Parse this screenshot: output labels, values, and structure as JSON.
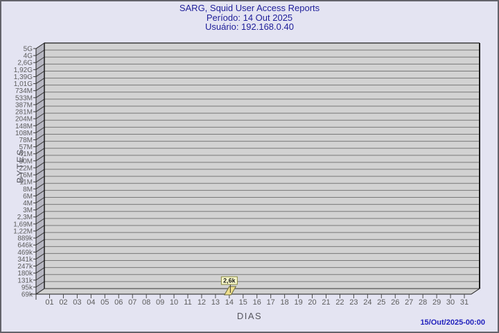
{
  "title": {
    "line1": "SARG, Squid User Access Reports",
    "line2": "Período: 14 Out 2025",
    "line3": "Usuário: 192.168.0.40"
  },
  "axes": {
    "y_title": "BYTES",
    "x_title": "DIAS"
  },
  "footer": {
    "timestamp": "15/Out/2025-00:00"
  },
  "colors": {
    "background": "#e4e4f2",
    "frame_border": "#63636b",
    "title_text": "#1e1e99",
    "timestamp_text": "#2121bd",
    "axis_title_text": "#56565e",
    "tick_text": "#5c5c5c",
    "plot_bg": "#d2d2d2",
    "wall": "#b7b7c2",
    "grid": "#787878",
    "dark_edge": "#1c1c1c",
    "bar_fill": "#efdf8d",
    "bar_edge": "#6b6b3a",
    "label_box_fill": "#ffffcf",
    "label_box_edge": "#84843c",
    "label_text": "#1a1a1a"
  },
  "chart_data": {
    "type": "bar",
    "title": "SARG, Squid User Access Reports",
    "subtitle": [
      "Período: 14 Out 2025",
      "Usuário: 192.168.0.40"
    ],
    "xlabel": "DIAS",
    "ylabel": "BYTES",
    "categories": [
      "01",
      "02",
      "03",
      "04",
      "05",
      "06",
      "07",
      "08",
      "09",
      "10",
      "11",
      "12",
      "13",
      "14",
      "15",
      "16",
      "17",
      "18",
      "19",
      "20",
      "21",
      "22",
      "23",
      "24",
      "25",
      "26",
      "27",
      "28",
      "29",
      "30",
      "31"
    ],
    "values": [
      0,
      0,
      0,
      0,
      0,
      0,
      0,
      0,
      0,
      0,
      0,
      0,
      0,
      2600,
      0,
      0,
      0,
      0,
      0,
      0,
      0,
      0,
      0,
      0,
      0,
      0,
      0,
      0,
      0,
      0,
      0
    ],
    "bar_value_labels": {
      "14": "2,6k"
    },
    "y_tick_labels_top_to_bottom": [
      "5G",
      "4G",
      "2,6G",
      "1,92G",
      "1,39G",
      "1,01G",
      "734M",
      "533M",
      "387M",
      "281M",
      "204M",
      "148M",
      "108M",
      "78M",
      "57M",
      "41M",
      "30M",
      "22M",
      "16M",
      "11M",
      "8M",
      "6M",
      "4M",
      "3M",
      "2,3M",
      "1,69M",
      "1,22M",
      "889k",
      "646k",
      "469k",
      "341k",
      "247k",
      "180k",
      "131k",
      "95k",
      "69k"
    ],
    "ylim": [
      "69k",
      "5G"
    ],
    "y_scale": "log",
    "grid": "horizontal",
    "legend": "none"
  }
}
